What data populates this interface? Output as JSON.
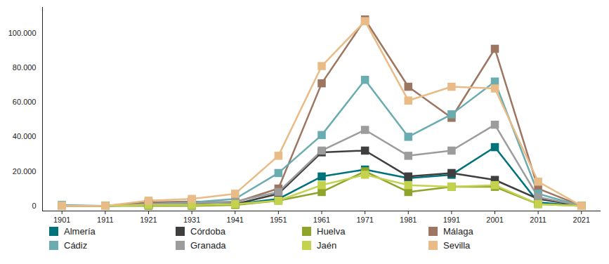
{
  "chart_data": {
    "type": "line",
    "x": [
      1901,
      1911,
      1921,
      1931,
      1941,
      1951,
      1961,
      1971,
      1981,
      1991,
      2001,
      2011,
      2021
    ],
    "xlim": [
      1896.5,
      2025.5
    ],
    "xticks": [
      1901,
      1911,
      1921,
      1931,
      1941,
      1951,
      1961,
      1971,
      1981,
      1991,
      2001,
      2011,
      2021
    ],
    "ylim": [
      -3000,
      115000
    ],
    "yticks": [
      0,
      {
        "value": 20000,
        "label": "20.000"
      },
      {
        "value": 40000,
        "label": "40.000"
      },
      {
        "value": 60000,
        "label": "60.000"
      },
      {
        "value": 80000,
        "label": "80.000"
      },
      {
        "value": 100000,
        "label": "100.000"
      }
    ],
    "grid": false,
    "legend": "bottom",
    "marker": "square",
    "series": [
      {
        "name": "Almería",
        "color": "#00737a",
        "values": [
          0,
          0,
          1000,
          1000,
          1000,
          4000,
          17000,
          21000,
          16000,
          18000,
          34000,
          2000,
          0
        ]
      },
      {
        "name": "Córdoba",
        "color": "#3f3f3f",
        "values": [
          0,
          0,
          500,
          500,
          1000,
          7000,
          31000,
          32000,
          17000,
          19000,
          15000,
          4000,
          0
        ]
      },
      {
        "name": "Huelva",
        "color": "#8fa52a",
        "values": [
          0,
          0,
          0,
          0,
          500,
          3000,
          8000,
          20000,
          8000,
          11000,
          11000,
          1000,
          0
        ]
      },
      {
        "name": "Málaga",
        "color": "#9c7661",
        "values": [
          0,
          0,
          2000,
          2500,
          2000,
          10000,
          71000,
          108000,
          69000,
          51000,
          91000,
          10000,
          0
        ]
      },
      {
        "name": "Cádiz",
        "color": "#6aacaf",
        "values": [
          500,
          0,
          1000,
          2000,
          4000,
          19000,
          41000,
          73000,
          40000,
          53000,
          72000,
          7000,
          0
        ]
      },
      {
        "name": "Granada",
        "color": "#9c9c9c",
        "values": [
          0,
          0,
          1000,
          1500,
          2500,
          8000,
          32000,
          44000,
          29000,
          32000,
          47000,
          5000,
          0
        ]
      },
      {
        "name": "Jaén",
        "color": "#c4d24e",
        "values": [
          0,
          0,
          500,
          500,
          1000,
          3000,
          12000,
          18000,
          12000,
          11000,
          12000,
          1000,
          0
        ]
      },
      {
        "name": "Sevilla",
        "color": "#e9bc87",
        "values": [
          0,
          0,
          3000,
          4000,
          7000,
          29000,
          81000,
          107000,
          61000,
          69000,
          68000,
          14000,
          0
        ]
      }
    ]
  }
}
